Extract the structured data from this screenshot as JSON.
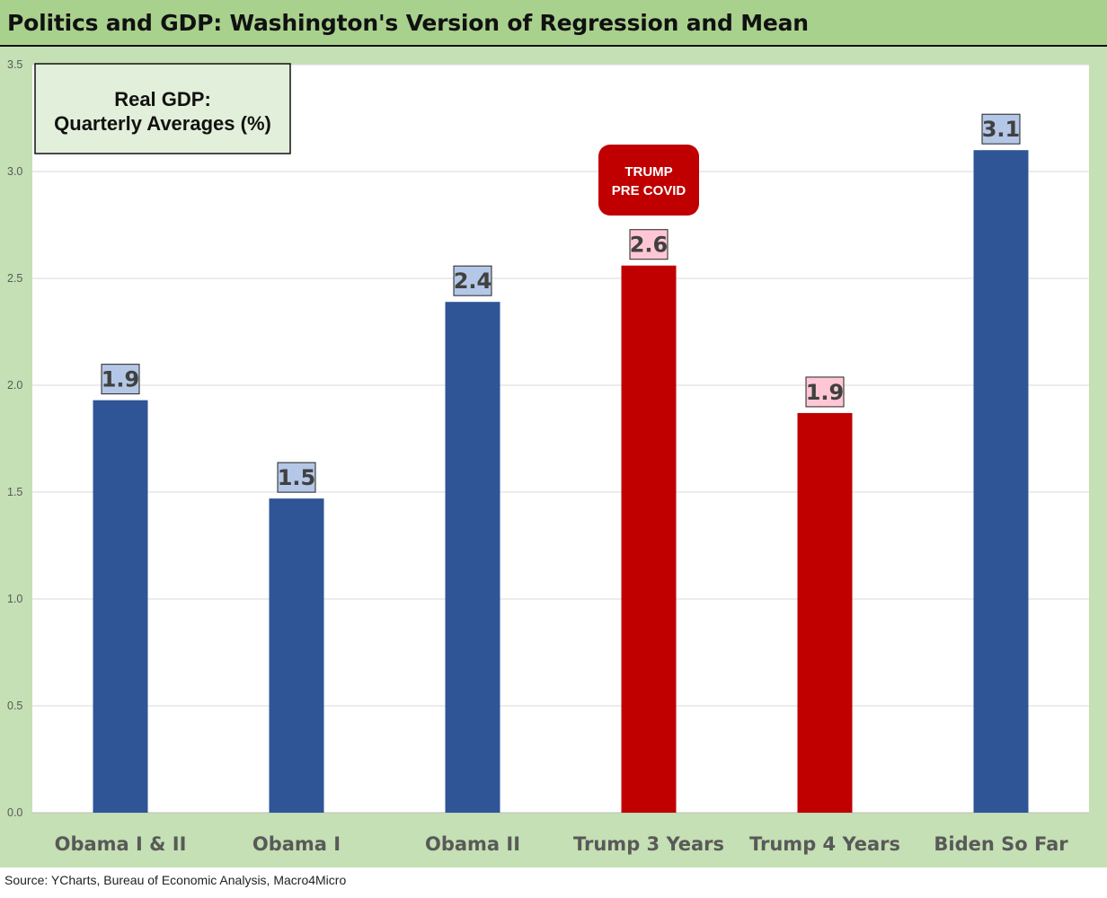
{
  "header": {
    "title": "Politics and GDP: Washington's Version of Regression and Mean"
  },
  "chart_data": {
    "type": "bar",
    "title": "Politics and GDP: Washington's Version of Regression and Mean",
    "legend_box": {
      "line1": "Real GDP:",
      "line2": "Quarterly Averages (%)"
    },
    "categories": [
      "Obama I & II",
      "Obama I",
      "Obama II",
      "Trump 3 Years",
      "Trump 4 Years",
      "Biden So Far"
    ],
    "values": [
      1.93,
      1.47,
      2.39,
      2.56,
      1.87,
      3.1
    ],
    "data_labels": [
      "1.9",
      "1.5",
      "2.4",
      "2.6",
      "1.9",
      "3.1"
    ],
    "party": [
      "D",
      "D",
      "D",
      "R",
      "R",
      "D"
    ],
    "yticks": [
      0,
      0.5,
      1,
      1.5,
      2,
      2.5,
      3,
      3.5
    ],
    "ytick_labels": [
      "0.0",
      "0.5",
      "1.0",
      "1.5",
      "2.0",
      "2.5",
      "3.0",
      "3.5"
    ],
    "ylim": [
      0,
      3.5
    ],
    "xlabel": "",
    "ylabel": "",
    "grid": true,
    "annotation": {
      "line1": "TRUMP",
      "line2": "PRE COVID",
      "category": "Trump 3 Years"
    },
    "colors": {
      "democrat_bar": "#2f5597",
      "republican_bar": "#c00000",
      "democrat_label_bg": "#b4c7e7",
      "republican_label_bg": "#ffc7d6",
      "frame": "#c5e0b4",
      "title_bar": "#a9d18e",
      "legend_bg": "#e2efda",
      "axis_text": "#595959"
    }
  },
  "footer": {
    "source": "Source: YCharts, Bureau of Economic Analysis, Macro4Micro"
  }
}
